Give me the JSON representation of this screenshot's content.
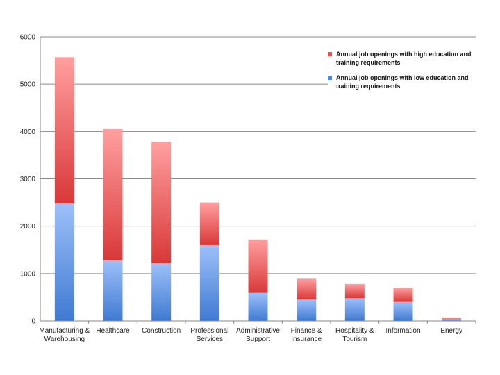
{
  "chart_data": {
    "type": "bar",
    "stacked": true,
    "categories": [
      [
        "Manufacturing &",
        "Warehousing"
      ],
      [
        "Healthcare"
      ],
      [
        "Construction"
      ],
      [
        "Professional",
        "Services"
      ],
      [
        "Administrative",
        "Support"
      ],
      [
        "Finance &",
        "Insurance"
      ],
      [
        "Hospitality &",
        "Tourism"
      ],
      [
        "Information"
      ],
      [
        "Energy"
      ]
    ],
    "series": [
      {
        "name": "Annual job openings with low education and training requirements",
        "color": "#4f88da",
        "values": [
          2480,
          1280,
          1220,
          1600,
          590,
          450,
          480,
          400,
          30
        ]
      },
      {
        "name": "Annual job openings with high education and training requirements",
        "color": "#e05454",
        "values": [
          3090,
          2770,
          2560,
          900,
          1130,
          440,
          300,
          300,
          30
        ]
      }
    ],
    "ylim": [
      0,
      6000
    ],
    "yticks": [
      0,
      1000,
      2000,
      3000,
      4000,
      5000,
      6000
    ],
    "grid": true,
    "legend_position": "top-right"
  }
}
